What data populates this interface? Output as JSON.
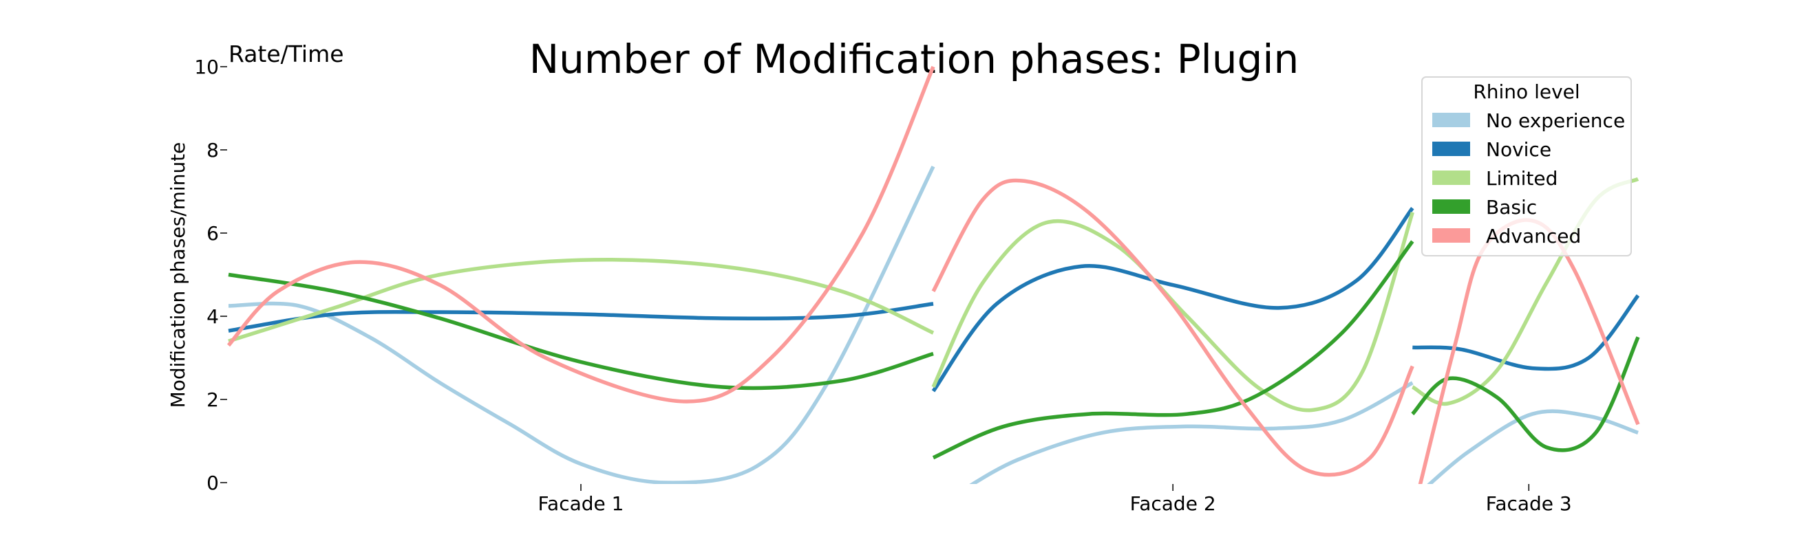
{
  "chart_data": {
    "type": "line",
    "title": "Number of Modification phases: Plugin",
    "corner_label": "Rate/Time",
    "xlabel": "",
    "ylabel": "Modification phases/minute",
    "ylim": [
      0,
      10
    ],
    "yticks": [
      0,
      2,
      4,
      6,
      8,
      10
    ],
    "grid": false,
    "legend": {
      "title": "Rhino level",
      "placement": "top-right"
    },
    "categories": [
      "Facade 1",
      "Facade 2",
      "Facade 3"
    ],
    "segments": [
      {
        "category": "Facade 1",
        "x_start": 0,
        "x_end": 10,
        "tick_x": 5
      },
      {
        "category": "Facade 2",
        "x_start": 10,
        "x_end": 16.8,
        "tick_x": 13.4
      },
      {
        "category": "Facade 3",
        "x_start": 16.8,
        "x_end": 20,
        "tick_x": 18.45
      }
    ],
    "series": [
      {
        "name": "No experience",
        "color": "#a6cee3",
        "segments": [
          [
            [
              0,
              4.25
            ],
            [
              1.0,
              4.25
            ],
            [
              2.0,
              3.5
            ],
            [
              3.0,
              2.4
            ],
            [
              4.0,
              1.4
            ],
            [
              5.0,
              0.45
            ],
            [
              6.2,
              0.0
            ],
            [
              7.5,
              0.4
            ],
            [
              8.5,
              2.4
            ],
            [
              10.0,
              7.6
            ]
          ],
          [
            [
              10.4,
              -0.2
            ],
            [
              11.2,
              0.55
            ],
            [
              12.4,
              1.2
            ],
            [
              13.6,
              1.35
            ],
            [
              14.8,
              1.3
            ],
            [
              15.8,
              1.5
            ],
            [
              16.8,
              2.4
            ]
          ],
          [
            [
              17.0,
              -0.1
            ],
            [
              17.6,
              0.75
            ],
            [
              18.5,
              1.65
            ],
            [
              19.3,
              1.6
            ],
            [
              20.0,
              1.2
            ]
          ]
        ]
      },
      {
        "name": "Novice",
        "color": "#1f78b4",
        "segments": [
          [
            [
              0,
              3.65
            ],
            [
              1.5,
              4.05
            ],
            [
              3.0,
              4.1
            ],
            [
              5.0,
              4.05
            ],
            [
              7.0,
              3.95
            ],
            [
              8.7,
              4.0
            ],
            [
              10.0,
              4.3
            ]
          ],
          [
            [
              10.0,
              2.2
            ],
            [
              10.9,
              4.3
            ],
            [
              12.1,
              5.2
            ],
            [
              13.4,
              4.75
            ],
            [
              14.9,
              4.2
            ],
            [
              16.0,
              4.85
            ],
            [
              16.8,
              6.6
            ]
          ],
          [
            [
              16.8,
              3.25
            ],
            [
              17.5,
              3.2
            ],
            [
              18.5,
              2.75
            ],
            [
              19.3,
              3.0
            ],
            [
              20.0,
              4.5
            ]
          ]
        ]
      },
      {
        "name": "Limited",
        "color": "#b2df8a",
        "segments": [
          [
            [
              0,
              3.4
            ],
            [
              1.5,
              4.2
            ],
            [
              3.0,
              5.0
            ],
            [
              5.0,
              5.35
            ],
            [
              7.0,
              5.2
            ],
            [
              8.7,
              4.6
            ],
            [
              10.0,
              3.6
            ]
          ],
          [
            [
              10.0,
              2.3
            ],
            [
              10.7,
              4.8
            ],
            [
              11.6,
              6.25
            ],
            [
              12.6,
              5.7
            ],
            [
              13.6,
              4.0
            ],
            [
              14.6,
              2.3
            ],
            [
              15.4,
              1.75
            ],
            [
              16.1,
              2.7
            ],
            [
              16.8,
              6.5
            ]
          ],
          [
            [
              16.8,
              2.3
            ],
            [
              17.3,
              1.9
            ],
            [
              18.0,
              2.7
            ],
            [
              18.7,
              4.8
            ],
            [
              19.4,
              6.8
            ],
            [
              20.0,
              7.3
            ]
          ]
        ]
      },
      {
        "name": "Basic",
        "color": "#33a02c",
        "segments": [
          [
            [
              0,
              5.0
            ],
            [
              1.5,
              4.6
            ],
            [
              3.0,
              3.95
            ],
            [
              5.0,
              2.9
            ],
            [
              7.0,
              2.3
            ],
            [
              8.7,
              2.45
            ],
            [
              10.0,
              3.1
            ]
          ],
          [
            [
              10.0,
              0.6
            ],
            [
              11.0,
              1.35
            ],
            [
              12.2,
              1.65
            ],
            [
              13.6,
              1.65
            ],
            [
              14.6,
              2.1
            ],
            [
              15.8,
              3.6
            ],
            [
              16.8,
              5.8
            ]
          ],
          [
            [
              16.8,
              1.65
            ],
            [
              17.3,
              2.5
            ],
            [
              18.0,
              2.05
            ],
            [
              18.7,
              0.85
            ],
            [
              19.4,
              1.2
            ],
            [
              20.0,
              3.5
            ]
          ]
        ]
      },
      {
        "name": "Advanced",
        "color": "#fb9a99",
        "segments": [
          [
            [
              0,
              3.3
            ],
            [
              0.7,
              4.6
            ],
            [
              1.8,
              5.3
            ],
            [
              3.0,
              4.75
            ],
            [
              4.5,
              3.0
            ],
            [
              6.5,
              1.95
            ],
            [
              7.7,
              3.0
            ],
            [
              9.0,
              6.0
            ],
            [
              10.0,
              10.0
            ]
          ],
          [
            [
              10.0,
              4.6
            ],
            [
              10.7,
              6.8
            ],
            [
              11.3,
              7.25
            ],
            [
              12.2,
              6.5
            ],
            [
              13.3,
              4.5
            ],
            [
              14.4,
              1.9
            ],
            [
              15.3,
              0.3
            ],
            [
              16.2,
              0.6
            ],
            [
              16.8,
              2.8
            ]
          ],
          [
            [
              16.9,
              -0.1
            ],
            [
              17.4,
              3.3
            ],
            [
              17.8,
              5.6
            ],
            [
              18.5,
              6.3
            ],
            [
              19.1,
              5.1
            ],
            [
              20.0,
              1.4
            ]
          ]
        ]
      }
    ]
  }
}
